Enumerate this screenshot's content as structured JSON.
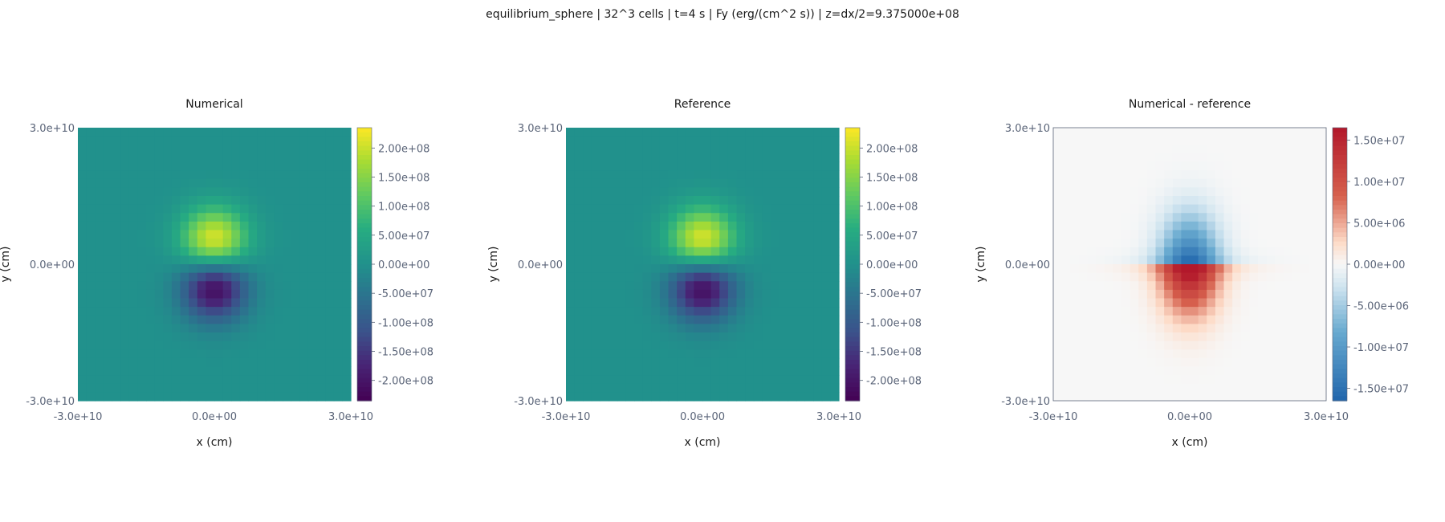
{
  "figure_title": "equilibrium_sphere | 32^3 cells | t=4 s | Fy (erg/(cm^2 s)) | z=dx/2=9.375000e+08",
  "chart_data": [
    {
      "type": "heatmap",
      "title": "Numerical",
      "xlabel": "x (cm)",
      "ylabel": "y (cm)",
      "grid": false,
      "x_ticks": [
        "-3.0e+10",
        "0.0e+00",
        "3.0e+10"
      ],
      "y_ticks": [
        "3.0e+10",
        "0.0e+00",
        "-3.0e+10"
      ],
      "xlim": [
        -30000000000.0,
        30000000000.0
      ],
      "ylim": [
        -30000000000.0,
        30000000000.0
      ],
      "grid_cells": 32,
      "colormap": "viridis",
      "color_range": [
        -235000000.0,
        235000000.0
      ],
      "colorbar_ticks": [
        "2.00e+08",
        "1.50e+08",
        "1.00e+08",
        "5.00e+07",
        "0.00e+00",
        "-5.00e+07",
        "-1.00e+08",
        "-1.50e+08",
        "-2.00e+08"
      ],
      "field": "dipole-y",
      "peak_value": 230000000.0
    },
    {
      "type": "heatmap",
      "title": "Reference",
      "xlabel": "x (cm)",
      "ylabel": "y (cm)",
      "grid": false,
      "x_ticks": [
        "-3.0e+10",
        "0.0e+00",
        "3.0e+10"
      ],
      "y_ticks": [
        "3.0e+10",
        "0.0e+00",
        "-3.0e+10"
      ],
      "xlim": [
        -30000000000.0,
        30000000000.0
      ],
      "ylim": [
        -30000000000.0,
        30000000000.0
      ],
      "grid_cells": 32,
      "colormap": "viridis",
      "color_range": [
        -235000000.0,
        235000000.0
      ],
      "colorbar_ticks": [
        "2.00e+08",
        "1.50e+08",
        "1.00e+08",
        "5.00e+07",
        "0.00e+00",
        "-5.00e+07",
        "-1.00e+08",
        "-1.50e+08",
        "-2.00e+08"
      ],
      "field": "dipole-y",
      "peak_value": 230000000.0
    },
    {
      "type": "heatmap",
      "title": "Numerical - reference",
      "xlabel": "x (cm)",
      "ylabel": "y (cm)",
      "grid": false,
      "x_ticks": [
        "-3.0e+10",
        "0.0e+00",
        "3.0e+10"
      ],
      "y_ticks": [
        "3.0e+10",
        "0.0e+00",
        "-3.0e+10"
      ],
      "xlim": [
        -30000000000.0,
        30000000000.0
      ],
      "ylim": [
        -30000000000.0,
        30000000000.0
      ],
      "grid_cells": 32,
      "colormap": "red-white-blue",
      "color_range": [
        -16500000.0,
        16500000.0
      ],
      "colorbar_ticks": [
        "1.50e+07",
        "1.00e+07",
        "5.00e+06",
        "0.00e+00",
        "-5.00e+06",
        "-1.00e+07",
        "-1.50e+07"
      ],
      "field": "cross-difference",
      "peak_value": 16000000.0
    }
  ]
}
